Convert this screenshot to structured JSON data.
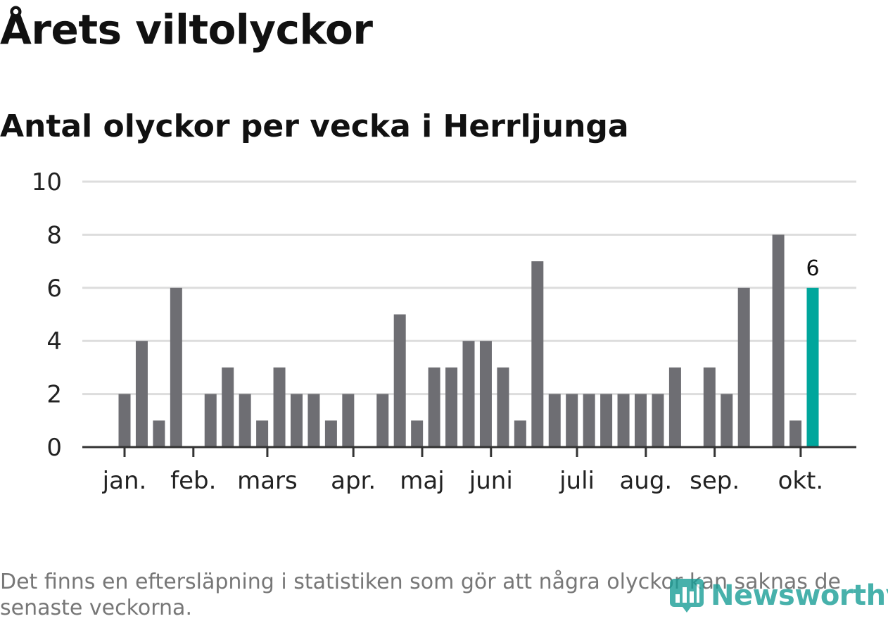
{
  "title": "Årets viltolyckor",
  "subtitle": "Antal olyckor per vecka i Herrljunga",
  "footnote": "Det finns en eftersläpning i statistiken som gör att några olyckor kan saknas de senaste veckorna.",
  "logo": {
    "text": "Newsworthy",
    "icon": "bar-chart-icon"
  },
  "colors": {
    "bar": "#6e6e73",
    "highlight": "#00a69c",
    "grid": "#dddddd",
    "axis": "#333333",
    "text": "#222222"
  },
  "chart_data": {
    "type": "bar",
    "ylim": [
      0,
      10
    ],
    "yticks": [
      0,
      2,
      4,
      6,
      8,
      10
    ],
    "grid": true,
    "values": [
      2,
      4,
      1,
      6,
      0,
      2,
      3,
      2,
      1,
      3,
      2,
      2,
      1,
      2,
      0,
      2,
      5,
      1,
      3,
      3,
      4,
      4,
      3,
      1,
      7,
      2,
      2,
      2,
      2,
      2,
      2,
      2,
      3,
      0,
      3,
      2,
      6,
      0,
      8,
      1,
      6
    ],
    "highlight_index": 40,
    "highlight_label": "6",
    "month_labels": [
      {
        "label": "jan.",
        "index": 0
      },
      {
        "label": "feb.",
        "index": 4
      },
      {
        "label": "mars",
        "index": 8.3
      },
      {
        "label": "apr.",
        "index": 13.3
      },
      {
        "label": "maj",
        "index": 17.3
      },
      {
        "label": "juni",
        "index": 21.3
      },
      {
        "label": "juli",
        "index": 26.3
      },
      {
        "label": "aug.",
        "index": 30.3
      },
      {
        "label": "sep.",
        "index": 34.3
      },
      {
        "label": "okt.",
        "index": 39.3
      }
    ]
  }
}
